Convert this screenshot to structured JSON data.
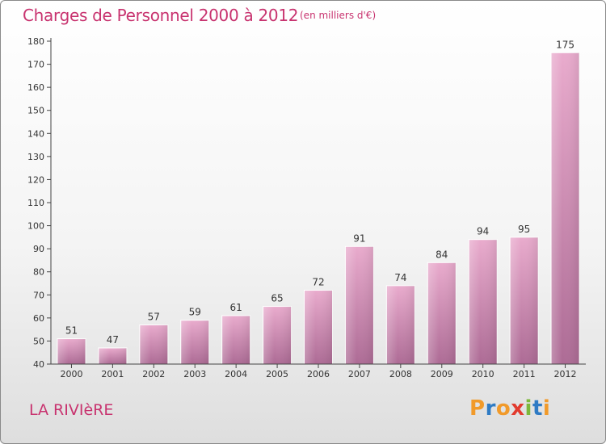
{
  "chart_data": {
    "type": "bar",
    "title": "Charges de Personnel 2000 à 2012",
    "subtitle": "(en milliers d'€)",
    "xlabel": "",
    "ylabel": "",
    "categories": [
      "2000",
      "2001",
      "2002",
      "2003",
      "2004",
      "2005",
      "2006",
      "2007",
      "2008",
      "2009",
      "2010",
      "2011",
      "2012"
    ],
    "values": [
      51,
      47,
      57,
      59,
      61,
      65,
      72,
      91,
      74,
      84,
      94,
      95,
      175
    ],
    "ylim": [
      40,
      180
    ],
    "yticks": [
      40,
      50,
      60,
      70,
      80,
      90,
      100,
      110,
      120,
      130,
      140,
      150,
      160,
      170,
      180
    ],
    "grid": false,
    "legend": "none"
  },
  "footer": {
    "location": "LA RIVIèRE",
    "brand": "Proxiti"
  },
  "colors": {
    "title": "#c8336f",
    "bar_light": "#e7a7ca",
    "bar_dark": "#b06f98",
    "axis": "#444444",
    "logo_letters": [
      "#f19a2a",
      "#2f7bc4",
      "#f19a2a",
      "#e23b2e",
      "#7cb83a",
      "#2f7bc4",
      "#f19a2a"
    ]
  }
}
